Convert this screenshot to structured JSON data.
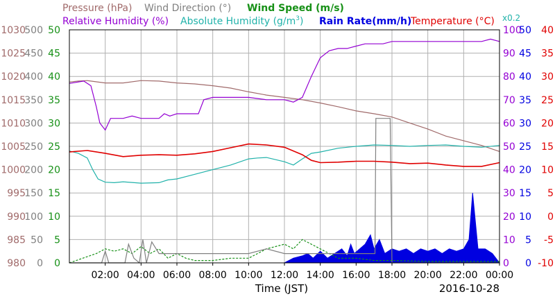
{
  "chart_data": {
    "type": "line",
    "legend": {
      "pressure": "Pressure (hPa)",
      "wind_direction": "Wind Direction (°)",
      "wind_speed": "Wind Speed (m/s)",
      "relative_humidity": "Relative Humidity (%)",
      "absolute_humidity_prefix": "Absolute Humidity (g/m",
      "absolute_humidity_sup": "3",
      "absolute_humidity_suffix": ")",
      "rain_rate": "Rain Rate(mm/h)",
      "temperature": "Temperature (°C)",
      "rain_scale": "x0.2"
    },
    "xlabel": "Time (JST)",
    "date": "2016-10-28",
    "x_ticks": [
      "02:00",
      "04:00",
      "06:00",
      "08:00",
      "10:00",
      "12:00",
      "14:00",
      "16:00",
      "18:00",
      "20:00",
      "22:00",
      "00:00"
    ],
    "xlim": [
      0,
      24
    ],
    "axes": {
      "pressure": {
        "ticks": [
          "1030",
          "1025",
          "1020",
          "1015",
          "1010",
          "1005",
          "1000",
          "995",
          "990",
          "985",
          "980"
        ],
        "range": [
          980,
          1030
        ],
        "color": "#a06a6a"
      },
      "wind_direction": {
        "ticks": [
          "500",
          "450",
          "400",
          "350",
          "300",
          "250",
          "200",
          "150",
          "100",
          "50",
          "0"
        ],
        "range": [
          0,
          500
        ],
        "color": "#808080"
      },
      "wind_speed": {
        "ticks": [
          "50",
          "45",
          "40",
          "35",
          "30",
          "25",
          "20",
          "15",
          "10",
          "5",
          "0"
        ],
        "range": [
          0,
          50
        ],
        "color": "#169016"
      },
      "relative_humidity": {
        "ticks": [
          "100",
          "90",
          "80",
          "70",
          "60",
          "50",
          "40",
          "30",
          "20",
          "10",
          "0"
        ],
        "range": [
          0,
          100
        ],
        "color": "#9400d3"
      },
      "rain_rate": {
        "ticks": [
          "50",
          "45",
          "40",
          "35",
          "30",
          "25",
          "20",
          "15",
          "10",
          "5",
          "0"
        ],
        "range": [
          0,
          50
        ],
        "color": "#0000e0"
      },
      "temperature": {
        "ticks": [
          "40",
          "35",
          "30",
          "25",
          "20",
          "15",
          "10",
          "5",
          "0",
          "-5",
          "-10"
        ],
        "range": [
          -10,
          40
        ],
        "color": "#e00000"
      }
    },
    "colors": {
      "pressure": "#a06a6a",
      "wind_direction": "#808080",
      "wind_speed": "#169016",
      "relative_humidity": "#9400d3",
      "absolute_humidity": "#20b2aa",
      "rain_rate": "#0000e0",
      "temperature": "#e00000",
      "grid": "#b0b0b0"
    },
    "grid": true,
    "series": {
      "pressure": {
        "unit": "hPa",
        "x": [
          0,
          0.5,
          1,
          2,
          3,
          4,
          5,
          6,
          7,
          8,
          9,
          10,
          11,
          12,
          13,
          14,
          15,
          16,
          17,
          18,
          19,
          20,
          21,
          22,
          23,
          24
        ],
        "y": [
          1018.8,
          1019.0,
          1019.1,
          1018.6,
          1018.6,
          1019.1,
          1019.0,
          1018.6,
          1018.4,
          1018.0,
          1017.5,
          1016.7,
          1016.0,
          1015.5,
          1015.0,
          1014.3,
          1013.5,
          1012.6,
          1012.0,
          1011.3,
          1010.0,
          1008.7,
          1007.2,
          1006.2,
          1005.2,
          1003.9
        ]
      },
      "relative_humidity": {
        "unit": "%",
        "x": [
          0,
          0.8,
          1.2,
          1.5,
          1.7,
          2.0,
          2.3,
          2.6,
          3.0,
          3.5,
          4.0,
          5.0,
          5.3,
          5.6,
          6.0,
          6.5,
          7.2,
          7.5,
          8.0,
          9.0,
          10.0,
          11.0,
          12.0,
          12.5,
          13.0,
          13.5,
          14.0,
          14.5,
          15.0,
          15.5,
          16.0,
          16.5,
          17.0,
          17.5,
          18.0,
          19.0,
          20.0,
          22.0,
          23.0,
          23.5,
          24.0
        ],
        "y": [
          77,
          78,
          76,
          67,
          60,
          57,
          62,
          62,
          62,
          63,
          62,
          62,
          64,
          63,
          64,
          64,
          64,
          70,
          71,
          71,
          71,
          70,
          70,
          69,
          71,
          80,
          88,
          91,
          92,
          92,
          93,
          94,
          94,
          94,
          95,
          95,
          95,
          95,
          95,
          96,
          95
        ]
      },
      "absolute_humidity": {
        "unit": "g/m3",
        "x": [
          0,
          0.5,
          1.0,
          1.3,
          1.6,
          2.0,
          2.5,
          3.0,
          4.0,
          5.0,
          5.5,
          6.0,
          7.0,
          8.0,
          9.0,
          10.0,
          10.5,
          11.0,
          12.0,
          12.5,
          13.0,
          13.5,
          14.0,
          15.0,
          16.0,
          17.0,
          18.0,
          19.0,
          20.0,
          21.0,
          22.0,
          23.0,
          24.0
        ],
        "y": [
          24.0,
          23.5,
          22.5,
          20,
          18,
          17.3,
          17.2,
          17.4,
          17.1,
          17.2,
          17.8,
          18.0,
          19.0,
          20.0,
          21.0,
          22.3,
          22.5,
          22.6,
          21.7,
          21.0,
          22.3,
          23.5,
          23.8,
          24.6,
          25.0,
          25.3,
          25.2,
          25.0,
          25.2,
          25.3,
          25.0,
          24.8,
          25.2
        ]
      },
      "temperature": {
        "unit": "°C",
        "x": [
          0,
          1,
          2,
          3,
          4,
          5,
          6,
          7,
          8,
          9,
          10,
          11,
          12,
          13,
          13.5,
          14,
          15,
          16,
          17,
          18,
          19,
          20,
          21,
          22,
          23,
          24
        ],
        "y": [
          13.8,
          14.1,
          13.5,
          12.8,
          13.1,
          13.2,
          13.1,
          13.4,
          13.9,
          14.7,
          15.5,
          15.3,
          14.8,
          13.2,
          12.0,
          11.5,
          11.6,
          11.8,
          11.8,
          11.6,
          11.3,
          11.4,
          11.0,
          10.7,
          10.7,
          11.5
        ]
      },
      "wind_direction": {
        "unit": "°",
        "x": [
          0,
          1.8,
          2.0,
          2.2,
          2.5,
          3.1,
          3.3,
          3.6,
          3.9,
          4.1,
          4.3,
          4.6,
          5.0,
          10.0,
          11.0,
          12.0,
          17.05,
          17.1,
          17.9,
          18.0,
          24.0
        ],
        "y": [
          0,
          0,
          25,
          0,
          0,
          0,
          40,
          10,
          0,
          50,
          0,
          45,
          20,
          20,
          30,
          20,
          20,
          310,
          310,
          0,
          0
        ]
      },
      "wind_speed": {
        "unit": "m/s",
        "x": [
          0,
          1.5,
          2,
          2.5,
          3,
          3.5,
          4,
          4.5,
          5,
          5.5,
          6,
          6.5,
          7,
          8,
          9,
          10,
          10.5,
          11,
          11.5,
          12,
          12.5,
          13,
          13.5,
          14,
          14.5,
          15,
          16,
          17,
          18,
          20,
          22,
          24
        ],
        "y": [
          0,
          2,
          3,
          2.5,
          3,
          2,
          3.5,
          2,
          3,
          1,
          2,
          1,
          0.5,
          0.5,
          1,
          1,
          2,
          3,
          3.5,
          4,
          3,
          5,
          4,
          3,
          2,
          1,
          1,
          0.5,
          0.5,
          0.3,
          0.3,
          0.3
        ]
      },
      "rain_rate": {
        "unit": "mm/h",
        "scale_note": "x0.2",
        "x": [
          0,
          12.0,
          12.5,
          13,
          13.3,
          13.6,
          14,
          14.4,
          14.8,
          15.2,
          15.5,
          15.7,
          15.9,
          16.2,
          16.5,
          16.8,
          17.0,
          17.3,
          17.6,
          18,
          18.4,
          18.8,
          19.2,
          19.6,
          20,
          20.4,
          20.8,
          21.2,
          21.6,
          22,
          22.3,
          22.5,
          22.8,
          23.2,
          23.6,
          24
        ],
        "y": [
          0,
          0,
          1,
          1.5,
          2,
          1,
          2.5,
          1,
          2,
          3,
          1.5,
          4,
          2,
          3,
          4,
          6,
          3,
          5,
          2,
          3,
          2.5,
          3,
          2,
          3,
          2.5,
          3,
          2,
          3,
          2.5,
          3,
          5,
          15,
          3,
          3,
          2,
          0
        ]
      }
    }
  }
}
